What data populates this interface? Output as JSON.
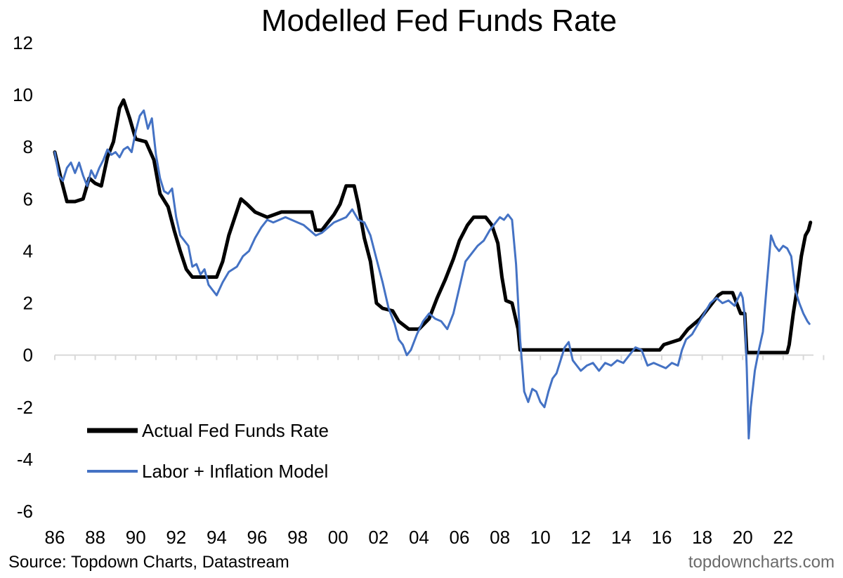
{
  "chart_data": {
    "type": "line",
    "title": "Modelled Fed Funds Rate",
    "xlabel": "",
    "ylabel": "",
    "xlim": [
      1986.0,
      2023.5
    ],
    "ylim": [
      -6,
      12
    ],
    "yticks": [
      12,
      10,
      8,
      6,
      4,
      2,
      0,
      -2,
      -4,
      -6
    ],
    "xtick_labels": [
      "86",
      "88",
      "90",
      "92",
      "94",
      "96",
      "98",
      "00",
      "02",
      "04",
      "06",
      "08",
      "10",
      "12",
      "14",
      "16",
      "18",
      "20",
      "22"
    ],
    "grid": false,
    "legend_position": "bottom-left",
    "source": "Source: Topdown Charts, Datastream",
    "watermark": "topdowncharts.com",
    "series": [
      {
        "name": "Actual Fed Funds Rate",
        "color": "#000000",
        "points": [
          [
            1986.0,
            7.8
          ],
          [
            1986.3,
            6.8
          ],
          [
            1986.6,
            5.9
          ],
          [
            1987.0,
            5.9
          ],
          [
            1987.4,
            6.0
          ],
          [
            1987.7,
            6.8
          ],
          [
            1988.0,
            6.6
          ],
          [
            1988.3,
            6.5
          ],
          [
            1988.6,
            7.6
          ],
          [
            1988.9,
            8.2
          ],
          [
            1989.2,
            9.5
          ],
          [
            1989.4,
            9.8
          ],
          [
            1989.7,
            9.1
          ],
          [
            1990.0,
            8.3
          ],
          [
            1990.5,
            8.2
          ],
          [
            1990.9,
            7.5
          ],
          [
            1991.2,
            6.2
          ],
          [
            1991.6,
            5.7
          ],
          [
            1991.9,
            4.8
          ],
          [
            1992.2,
            4.0
          ],
          [
            1992.5,
            3.3
          ],
          [
            1992.8,
            3.0
          ],
          [
            1993.5,
            3.0
          ],
          [
            1994.0,
            3.0
          ],
          [
            1994.3,
            3.6
          ],
          [
            1994.6,
            4.6
          ],
          [
            1994.9,
            5.3
          ],
          [
            1995.2,
            6.0
          ],
          [
            1995.5,
            5.8
          ],
          [
            1995.9,
            5.5
          ],
          [
            1996.5,
            5.3
          ],
          [
            1997.2,
            5.5
          ],
          [
            1998.0,
            5.5
          ],
          [
            1998.7,
            5.5
          ],
          [
            1998.9,
            4.8
          ],
          [
            1999.2,
            4.8
          ],
          [
            1999.5,
            5.1
          ],
          [
            1999.8,
            5.4
          ],
          [
            2000.1,
            5.8
          ],
          [
            2000.4,
            6.5
          ],
          [
            2000.8,
            6.5
          ],
          [
            2001.0,
            5.8
          ],
          [
            2001.3,
            4.5
          ],
          [
            2001.6,
            3.6
          ],
          [
            2001.9,
            2.0
          ],
          [
            2002.2,
            1.8
          ],
          [
            2002.7,
            1.7
          ],
          [
            2003.0,
            1.3
          ],
          [
            2003.5,
            1.0
          ],
          [
            2004.0,
            1.0
          ],
          [
            2004.5,
            1.4
          ],
          [
            2004.9,
            2.2
          ],
          [
            2005.3,
            2.9
          ],
          [
            2005.7,
            3.7
          ],
          [
            2006.0,
            4.4
          ],
          [
            2006.4,
            5.0
          ],
          [
            2006.7,
            5.3
          ],
          [
            2007.3,
            5.3
          ],
          [
            2007.6,
            5.0
          ],
          [
            2007.9,
            4.3
          ],
          [
            2008.1,
            3.0
          ],
          [
            2008.3,
            2.1
          ],
          [
            2008.6,
            2.0
          ],
          [
            2008.9,
            1.0
          ],
          [
            2009.0,
            0.2
          ],
          [
            2015.9,
            0.2
          ],
          [
            2016.1,
            0.4
          ],
          [
            2016.9,
            0.6
          ],
          [
            2017.3,
            1.0
          ],
          [
            2017.9,
            1.4
          ],
          [
            2018.3,
            1.8
          ],
          [
            2018.8,
            2.3
          ],
          [
            2019.0,
            2.4
          ],
          [
            2019.5,
            2.4
          ],
          [
            2019.7,
            2.0
          ],
          [
            2019.9,
            1.6
          ],
          [
            2020.1,
            1.6
          ],
          [
            2020.2,
            0.1
          ],
          [
            2022.2,
            0.1
          ],
          [
            2022.3,
            0.4
          ],
          [
            2022.5,
            1.6
          ],
          [
            2022.7,
            2.6
          ],
          [
            2022.9,
            3.8
          ],
          [
            2023.1,
            4.6
          ],
          [
            2023.25,
            4.8
          ],
          [
            2023.35,
            5.1
          ]
        ]
      },
      {
        "name": "Labor + Inflation Model",
        "color": "#4472c4",
        "points": [
          [
            1986.0,
            7.8
          ],
          [
            1986.2,
            6.9
          ],
          [
            1986.4,
            6.7
          ],
          [
            1986.6,
            7.2
          ],
          [
            1986.8,
            7.4
          ],
          [
            1987.0,
            7.0
          ],
          [
            1987.2,
            7.4
          ],
          [
            1987.4,
            6.9
          ],
          [
            1987.6,
            6.5
          ],
          [
            1987.8,
            7.1
          ],
          [
            1988.0,
            6.8
          ],
          [
            1988.2,
            7.2
          ],
          [
            1988.4,
            7.5
          ],
          [
            1988.6,
            7.9
          ],
          [
            1988.8,
            7.7
          ],
          [
            1989.0,
            7.8
          ],
          [
            1989.2,
            7.6
          ],
          [
            1989.4,
            7.9
          ],
          [
            1989.6,
            8.0
          ],
          [
            1989.8,
            7.8
          ],
          [
            1990.0,
            8.6
          ],
          [
            1990.2,
            9.2
          ],
          [
            1990.4,
            9.4
          ],
          [
            1990.6,
            8.7
          ],
          [
            1990.8,
            9.1
          ],
          [
            1991.0,
            7.7
          ],
          [
            1991.2,
            6.8
          ],
          [
            1991.4,
            6.3
          ],
          [
            1991.6,
            6.2
          ],
          [
            1991.8,
            6.4
          ],
          [
            1992.0,
            5.3
          ],
          [
            1992.2,
            4.6
          ],
          [
            1992.4,
            4.4
          ],
          [
            1992.6,
            4.2
          ],
          [
            1992.8,
            3.4
          ],
          [
            1993.0,
            3.5
          ],
          [
            1993.2,
            3.1
          ],
          [
            1993.4,
            3.3
          ],
          [
            1993.6,
            2.7
          ],
          [
            1993.8,
            2.5
          ],
          [
            1994.0,
            2.3
          ],
          [
            1994.3,
            2.8
          ],
          [
            1994.6,
            3.2
          ],
          [
            1995.0,
            3.4
          ],
          [
            1995.3,
            3.8
          ],
          [
            1995.6,
            4.0
          ],
          [
            1995.9,
            4.5
          ],
          [
            1996.2,
            4.9
          ],
          [
            1996.5,
            5.2
          ],
          [
            1996.8,
            5.1
          ],
          [
            1997.1,
            5.2
          ],
          [
            1997.4,
            5.3
          ],
          [
            1997.7,
            5.2
          ],
          [
            1998.0,
            5.1
          ],
          [
            1998.3,
            5.0
          ],
          [
            1998.6,
            4.8
          ],
          [
            1998.9,
            4.6
          ],
          [
            1999.2,
            4.7
          ],
          [
            1999.5,
            4.9
          ],
          [
            1999.8,
            5.1
          ],
          [
            2000.1,
            5.2
          ],
          [
            2000.4,
            5.3
          ],
          [
            2000.7,
            5.6
          ],
          [
            2001.0,
            5.2
          ],
          [
            2001.3,
            5.1
          ],
          [
            2001.6,
            4.6
          ],
          [
            2001.9,
            3.7
          ],
          [
            2002.2,
            2.8
          ],
          [
            2002.5,
            1.8
          ],
          [
            2002.8,
            1.2
          ],
          [
            2003.0,
            0.6
          ],
          [
            2003.2,
            0.4
          ],
          [
            2003.4,
            0.0
          ],
          [
            2003.6,
            0.2
          ],
          [
            2003.9,
            0.8
          ],
          [
            2004.2,
            1.3
          ],
          [
            2004.5,
            1.6
          ],
          [
            2004.8,
            1.4
          ],
          [
            2005.1,
            1.3
          ],
          [
            2005.4,
            1.0
          ],
          [
            2005.7,
            1.6
          ],
          [
            2006.0,
            2.6
          ],
          [
            2006.3,
            3.6
          ],
          [
            2006.6,
            3.9
          ],
          [
            2006.9,
            4.2
          ],
          [
            2007.2,
            4.4
          ],
          [
            2007.5,
            4.8
          ],
          [
            2007.8,
            5.1
          ],
          [
            2008.0,
            5.3
          ],
          [
            2008.2,
            5.2
          ],
          [
            2008.4,
            5.4
          ],
          [
            2008.6,
            5.2
          ],
          [
            2008.8,
            3.5
          ],
          [
            2009.0,
            0.6
          ],
          [
            2009.2,
            -1.4
          ],
          [
            2009.4,
            -1.8
          ],
          [
            2009.6,
            -1.3
          ],
          [
            2009.8,
            -1.4
          ],
          [
            2010.0,
            -1.8
          ],
          [
            2010.2,
            -2.0
          ],
          [
            2010.4,
            -1.4
          ],
          [
            2010.6,
            -0.9
          ],
          [
            2010.8,
            -0.7
          ],
          [
            2011.0,
            -0.2
          ],
          [
            2011.2,
            0.3
          ],
          [
            2011.4,
            0.5
          ],
          [
            2011.6,
            -0.2
          ],
          [
            2011.8,
            -0.4
          ],
          [
            2012.0,
            -0.6
          ],
          [
            2012.3,
            -0.4
          ],
          [
            2012.6,
            -0.3
          ],
          [
            2012.9,
            -0.6
          ],
          [
            2013.2,
            -0.3
          ],
          [
            2013.5,
            -0.4
          ],
          [
            2013.8,
            -0.2
          ],
          [
            2014.1,
            -0.3
          ],
          [
            2014.4,
            0.0
          ],
          [
            2014.7,
            0.3
          ],
          [
            2015.0,
            0.2
          ],
          [
            2015.3,
            -0.4
          ],
          [
            2015.6,
            -0.3
          ],
          [
            2015.9,
            -0.4
          ],
          [
            2016.2,
            -0.5
          ],
          [
            2016.5,
            -0.3
          ],
          [
            2016.8,
            -0.4
          ],
          [
            2017.0,
            0.2
          ],
          [
            2017.2,
            0.6
          ],
          [
            2017.5,
            0.8
          ],
          [
            2017.8,
            1.2
          ],
          [
            2018.1,
            1.6
          ],
          [
            2018.4,
            2.0
          ],
          [
            2018.7,
            2.2
          ],
          [
            2019.0,
            2.0
          ],
          [
            2019.3,
            2.1
          ],
          [
            2019.6,
            1.9
          ],
          [
            2019.9,
            2.4
          ],
          [
            2020.0,
            2.2
          ],
          [
            2020.1,
            1.5
          ],
          [
            2020.2,
            -0.5
          ],
          [
            2020.3,
            -3.2
          ],
          [
            2020.4,
            -2.0
          ],
          [
            2020.6,
            -0.6
          ],
          [
            2020.8,
            0.2
          ],
          [
            2021.0,
            0.9
          ],
          [
            2021.2,
            2.8
          ],
          [
            2021.4,
            4.6
          ],
          [
            2021.6,
            4.2
          ],
          [
            2021.8,
            4.0
          ],
          [
            2022.0,
            4.2
          ],
          [
            2022.2,
            4.1
          ],
          [
            2022.4,
            3.8
          ],
          [
            2022.6,
            2.5
          ],
          [
            2022.8,
            2.0
          ],
          [
            2023.0,
            1.6
          ],
          [
            2023.2,
            1.3
          ],
          [
            2023.3,
            1.2
          ]
        ]
      }
    ]
  }
}
